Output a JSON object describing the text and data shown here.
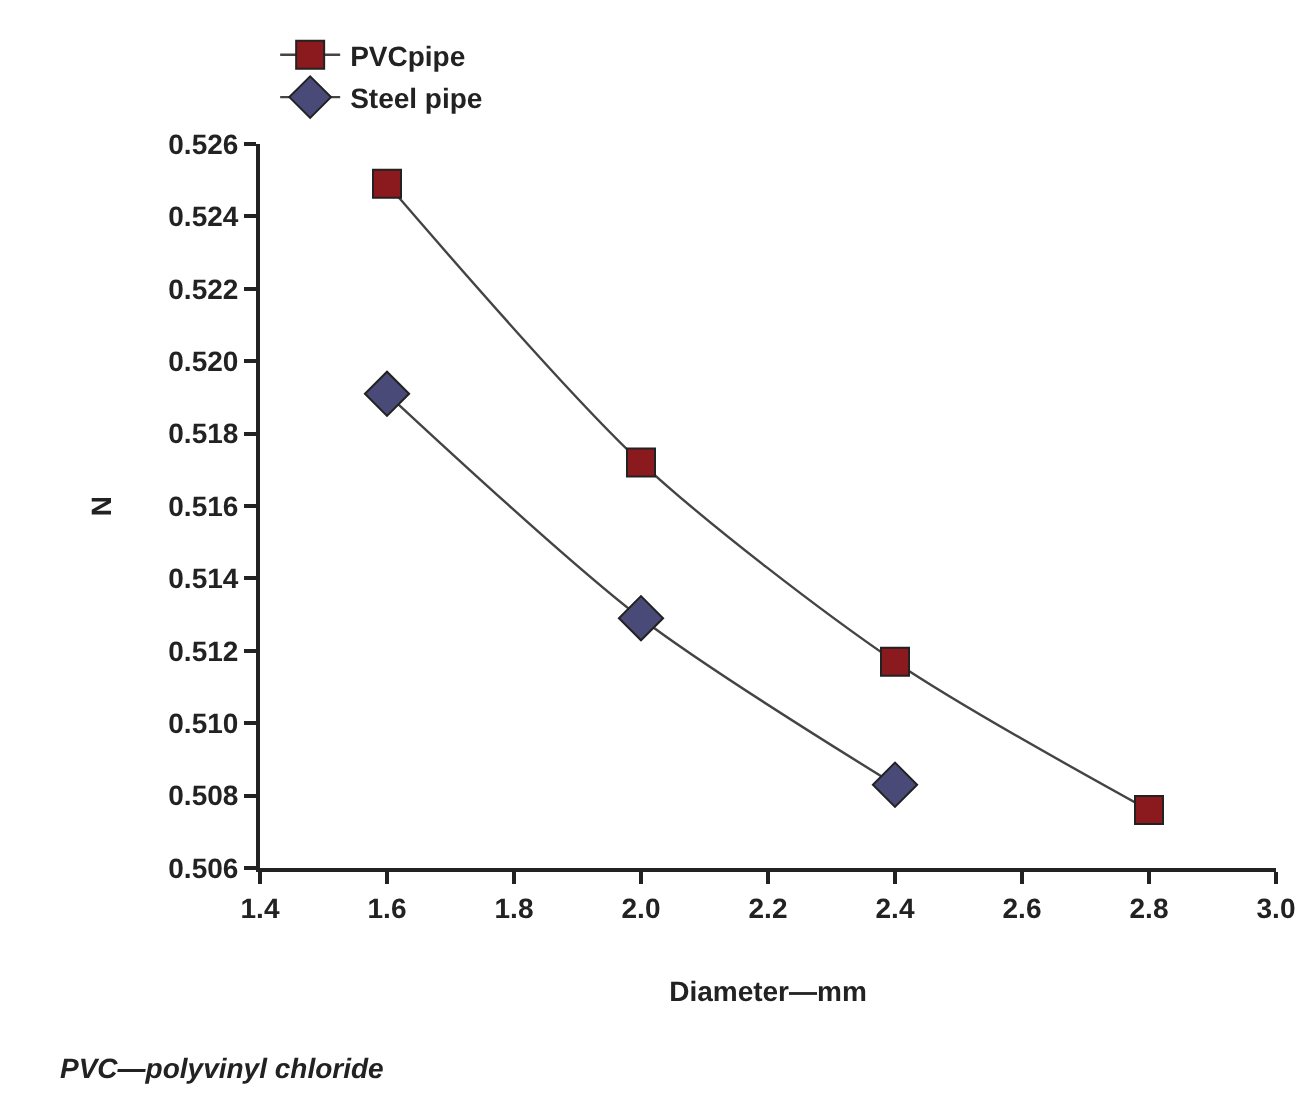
{
  "chart_data": {
    "type": "line",
    "xlabel": "Diameter—mm",
    "ylabel": "N",
    "annotations": [
      "PVC—polyvinyl chloride"
    ],
    "series": [
      {
        "name": "PVCpipe",
        "color": "#8b1a1f",
        "marker": "square",
        "x": [
          1.6,
          2.0,
          2.4,
          2.8
        ],
        "values": [
          0.5249,
          0.5172,
          0.5117,
          0.5076
        ]
      },
      {
        "name": "Steel pipe",
        "color": "#4a4a78",
        "marker": "diamond",
        "x": [
          1.6,
          2.0,
          2.4
        ],
        "values": [
          0.5191,
          0.5129,
          0.5083
        ]
      }
    ],
    "xlim": [
      1.4,
      3.0
    ],
    "xticks": [
      {
        "value": 1.4,
        "label": "1.4"
      },
      {
        "value": 1.6,
        "label": "1.6"
      },
      {
        "value": 1.8,
        "label": "1.8"
      },
      {
        "value": 2.0,
        "label": "2.0"
      },
      {
        "value": 2.2,
        "label": "2.2"
      },
      {
        "value": 2.4,
        "label": "2.4"
      },
      {
        "value": 2.6,
        "label": "2.6"
      },
      {
        "value": 2.8,
        "label": "2.8"
      },
      {
        "value": 3.0,
        "label": "3.0"
      }
    ],
    "ylim": [
      0.506,
      0.526
    ],
    "yticks": [
      0.506,
      0.508,
      {
        "value": 0.51,
        "label": "0.510"
      },
      0.512,
      0.514,
      0.516,
      0.518,
      {
        "value": 0.52,
        "label": "0.520"
      },
      0.522,
      0.524,
      0.526
    ],
    "grid": false,
    "legend": "top left",
    "line_style": "solid"
  }
}
